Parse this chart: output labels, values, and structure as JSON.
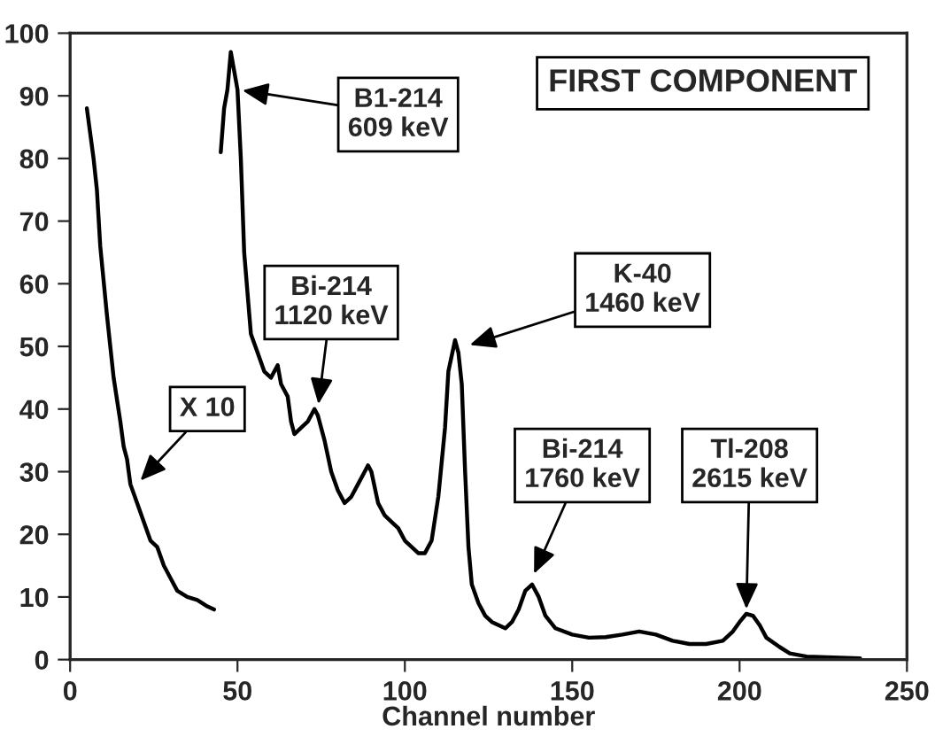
{
  "chart_data": {
    "type": "line",
    "xlabel": "Channel number",
    "xlim": [
      0,
      250
    ],
    "ylim": [
      0,
      100
    ],
    "xticks": [
      0,
      50,
      100,
      150,
      200,
      250
    ],
    "yticks": [
      0,
      10,
      20,
      30,
      40,
      50,
      60,
      70,
      80,
      90,
      100
    ],
    "grid": false,
    "legend": false,
    "marker": "none",
    "line_style": "solid",
    "series": [
      {
        "color": "#000000",
        "x": [
          5,
          7,
          8,
          9,
          11,
          13,
          15,
          16,
          17,
          18,
          20,
          22,
          24,
          26,
          28,
          30,
          32,
          35,
          38,
          41,
          43
        ],
        "values": [
          88,
          80,
          75,
          66,
          55,
          45,
          38,
          34,
          32,
          28,
          25,
          22,
          19,
          18,
          15,
          13,
          11,
          10,
          9.5,
          8.5,
          8
        ]
      },
      {
        "color": "#000000",
        "x": [
          45,
          46,
          47,
          48,
          49,
          50,
          51,
          52,
          54,
          56,
          58,
          60,
          62,
          63,
          65,
          66,
          67,
          69,
          71,
          73,
          74,
          76,
          78,
          80,
          82,
          84,
          86,
          88,
          89,
          90,
          92,
          94,
          96,
          98,
          100,
          102,
          104,
          106,
          108,
          110,
          112,
          113,
          115,
          116,
          117,
          118,
          119,
          120,
          122,
          124,
          126,
          128,
          130,
          132,
          134,
          136,
          138,
          140,
          142,
          145,
          150,
          155,
          160,
          165,
          170,
          175,
          180,
          185,
          190,
          195,
          198,
          200,
          202,
          204,
          206,
          208,
          212,
          215,
          220,
          230,
          236
        ],
        "values": [
          81,
          88,
          91,
          97,
          94,
          91,
          80,
          65,
          52,
          49,
          46,
          45,
          47,
          44,
          42,
          38,
          36,
          37,
          38,
          40,
          39,
          35,
          30,
          27,
          25,
          26,
          28,
          30,
          31,
          30,
          25,
          23,
          22,
          21,
          19,
          18,
          17,
          17,
          19,
          26,
          37,
          46,
          51,
          49,
          44,
          30,
          18,
          12,
          9,
          7,
          6,
          5.5,
          5,
          6,
          8,
          11,
          12,
          10,
          7,
          5,
          4,
          3.5,
          3.6,
          4,
          4.5,
          4,
          3,
          2.5,
          2.5,
          3,
          4.5,
          6,
          7.3,
          7,
          5.5,
          3.5,
          2,
          1,
          0.5,
          0.3,
          0.2
        ]
      }
    ],
    "annotations": [
      {
        "text": "B1-214\n609 keV",
        "x": 50,
        "y": 91
      },
      {
        "text": "Bi-214\n1120 keV",
        "x": 74,
        "y": 40
      },
      {
        "text": "K-40\n1460 keV",
        "x": 118,
        "y": 50
      },
      {
        "text": "Bi-214\n1760 keV",
        "x": 138,
        "y": 13
      },
      {
        "text": "Tl-208\n2615 keV",
        "x": 202,
        "y": 7.3
      },
      {
        "text": "X 10",
        "x": 20,
        "y": 28
      },
      "FIRST COMPONENT"
    ]
  }
}
